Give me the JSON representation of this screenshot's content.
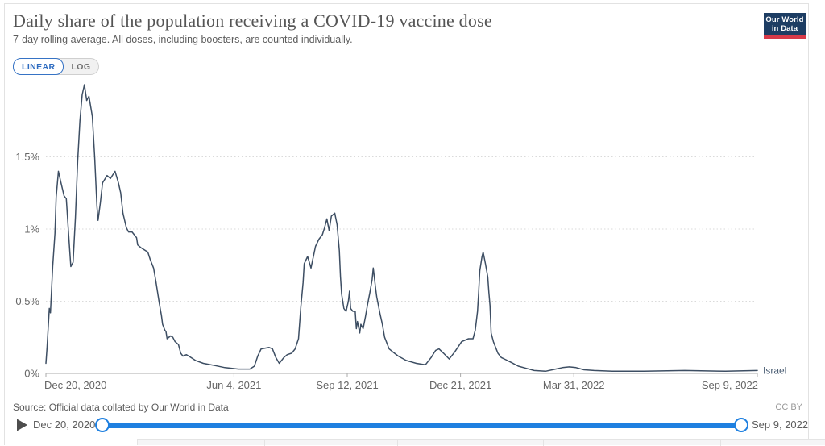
{
  "header": {
    "title": "Daily share of the population receiving a COVID-19 vaccine dose",
    "subtitle": "7-day rolling average. All doses, including boosters, are counted individually.",
    "logo": {
      "line1": "Our World",
      "line2": "in Data"
    }
  },
  "scale_toggle": {
    "linear_label": "LINEAR",
    "log_label": "LOG",
    "selected": "LINEAR"
  },
  "chart_data": {
    "type": "line",
    "title": "Daily share of the population receiving a COVID-19 vaccine dose",
    "x_unit": "days since Dec 20, 2020",
    "xlim": [
      0,
      628
    ],
    "ylim": [
      0,
      2.05
    ],
    "grid": true,
    "y_ticks": [
      {
        "value": 0,
        "label": "0%"
      },
      {
        "value": 0.5,
        "label": "0.5%"
      },
      {
        "value": 1,
        "label": "1%"
      },
      {
        "value": 1.5,
        "label": "1.5%"
      }
    ],
    "x_ticks": [
      {
        "day": 0,
        "label": "Dec 20, 2020"
      },
      {
        "day": 166,
        "label": "Jun 4, 2021"
      },
      {
        "day": 266,
        "label": "Sep 12, 2021"
      },
      {
        "day": 366,
        "label": "Dec 21, 2021"
      },
      {
        "day": 466,
        "label": "Mar 31, 2022"
      },
      {
        "day": 628,
        "label": "Sep 9, 2022"
      }
    ],
    "series": [
      {
        "name": "Israel",
        "color": "#3d4e63",
        "label_color": "#4a5d73",
        "points": [
          [
            0,
            0.07
          ],
          [
            1,
            0.18
          ],
          [
            3,
            0.45
          ],
          [
            4,
            0.42
          ],
          [
            6,
            0.74
          ],
          [
            8,
            0.97
          ],
          [
            9,
            1.22
          ],
          [
            11,
            1.4
          ],
          [
            13,
            1.33
          ],
          [
            16,
            1.23
          ],
          [
            18,
            1.21
          ],
          [
            20,
            0.97
          ],
          [
            22,
            0.74
          ],
          [
            24,
            0.77
          ],
          [
            26,
            1.08
          ],
          [
            28,
            1.47
          ],
          [
            30,
            1.75
          ],
          [
            32,
            1.93
          ],
          [
            34,
            2.0
          ],
          [
            36,
            1.89
          ],
          [
            38,
            1.92
          ],
          [
            41,
            1.78
          ],
          [
            43,
            1.5
          ],
          [
            45,
            1.16
          ],
          [
            46,
            1.06
          ],
          [
            48,
            1.18
          ],
          [
            50,
            1.32
          ],
          [
            54,
            1.37
          ],
          [
            57,
            1.35
          ],
          [
            61,
            1.4
          ],
          [
            64,
            1.32
          ],
          [
            66,
            1.25
          ],
          [
            68,
            1.11
          ],
          [
            71,
            1.01
          ],
          [
            73,
            0.98
          ],
          [
            76,
            0.98
          ],
          [
            78,
            0.96
          ],
          [
            80,
            0.94
          ],
          [
            81,
            0.89
          ],
          [
            84,
            0.87
          ],
          [
            88,
            0.85
          ],
          [
            90,
            0.84
          ],
          [
            92,
            0.79
          ],
          [
            95,
            0.73
          ],
          [
            97,
            0.64
          ],
          [
            98,
            0.59
          ],
          [
            100,
            0.49
          ],
          [
            102,
            0.4
          ],
          [
            103,
            0.34
          ],
          [
            105,
            0.3
          ],
          [
            106,
            0.29
          ],
          [
            107,
            0.24
          ],
          [
            110,
            0.26
          ],
          [
            112,
            0.25
          ],
          [
            114,
            0.22
          ],
          [
            117,
            0.2
          ],
          [
            119,
            0.14
          ],
          [
            121,
            0.12
          ],
          [
            124,
            0.13
          ],
          [
            128,
            0.11
          ],
          [
            132,
            0.09
          ],
          [
            139,
            0.07
          ],
          [
            149,
            0.055
          ],
          [
            158,
            0.04
          ],
          [
            170,
            0.03
          ],
          [
            180,
            0.03
          ],
          [
            184,
            0.05
          ],
          [
            187,
            0.12
          ],
          [
            190,
            0.17
          ],
          [
            197,
            0.18
          ],
          [
            200,
            0.17
          ],
          [
            203,
            0.11
          ],
          [
            206,
            0.07
          ],
          [
            210,
            0.11
          ],
          [
            213,
            0.13
          ],
          [
            217,
            0.14
          ],
          [
            220,
            0.17
          ],
          [
            223,
            0.24
          ],
          [
            225,
            0.46
          ],
          [
            227,
            0.63
          ],
          [
            228,
            0.76
          ],
          [
            231,
            0.81
          ],
          [
            234,
            0.73
          ],
          [
            238,
            0.88
          ],
          [
            241,
            0.93
          ],
          [
            244,
            0.96
          ],
          [
            246,
            1.01
          ],
          [
            248,
            1.07
          ],
          [
            250,
            0.99
          ],
          [
            252,
            1.09
          ],
          [
            255,
            1.11
          ],
          [
            257,
            1.03
          ],
          [
            259,
            0.85
          ],
          [
            260,
            0.67
          ],
          [
            261,
            0.55
          ],
          [
            263,
            0.45
          ],
          [
            265,
            0.43
          ],
          [
            267,
            0.5
          ],
          [
            268,
            0.57
          ],
          [
            269,
            0.45
          ],
          [
            271,
            0.43
          ],
          [
            273,
            0.43
          ],
          [
            274,
            0.31
          ],
          [
            275,
            0.36
          ],
          [
            277,
            0.28
          ],
          [
            278,
            0.34
          ],
          [
            280,
            0.31
          ],
          [
            282,
            0.39
          ],
          [
            284,
            0.48
          ],
          [
            286,
            0.56
          ],
          [
            288,
            0.65
          ],
          [
            289,
            0.73
          ],
          [
            291,
            0.59
          ],
          [
            292,
            0.53
          ],
          [
            295,
            0.41
          ],
          [
            297,
            0.34
          ],
          [
            299,
            0.25
          ],
          [
            303,
            0.17
          ],
          [
            306,
            0.15
          ],
          [
            311,
            0.12
          ],
          [
            318,
            0.09
          ],
          [
            327,
            0.07
          ],
          [
            335,
            0.06
          ],
          [
            340,
            0.11
          ],
          [
            344,
            0.16
          ],
          [
            347,
            0.17
          ],
          [
            351,
            0.14
          ],
          [
            356,
            0.1
          ],
          [
            361,
            0.15
          ],
          [
            367,
            0.22
          ],
          [
            373,
            0.24
          ],
          [
            377,
            0.24
          ],
          [
            379,
            0.3
          ],
          [
            381,
            0.43
          ],
          [
            382,
            0.56
          ],
          [
            383,
            0.71
          ],
          [
            385,
            0.81
          ],
          [
            386,
            0.84
          ],
          [
            388,
            0.76
          ],
          [
            390,
            0.67
          ],
          [
            391,
            0.56
          ],
          [
            392,
            0.47
          ],
          [
            393,
            0.28
          ],
          [
            395,
            0.22
          ],
          [
            397,
            0.18
          ],
          [
            399,
            0.14
          ],
          [
            402,
            0.11
          ],
          [
            406,
            0.095
          ],
          [
            411,
            0.075
          ],
          [
            417,
            0.05
          ],
          [
            424,
            0.035
          ],
          [
            431,
            0.02
          ],
          [
            441,
            0.015
          ],
          [
            450,
            0.03
          ],
          [
            456,
            0.04
          ],
          [
            462,
            0.045
          ],
          [
            468,
            0.04
          ],
          [
            475,
            0.025
          ],
          [
            484,
            0.02
          ],
          [
            500,
            0.015
          ],
          [
            528,
            0.015
          ],
          [
            564,
            0.02
          ],
          [
            600,
            0.015
          ],
          [
            628,
            0.02
          ]
        ]
      }
    ]
  },
  "footer": {
    "source": "Source: Official data collated by Our World in Data",
    "license": "CC BY"
  },
  "timeline": {
    "start_label": "Dec 20, 2020",
    "end_label": "Sep 9, 2022"
  },
  "colors": {
    "accent_blue": "#2d6bc0",
    "slider_blue": "#1f80e0",
    "line": "#3d4e63",
    "logo_navy": "#1d3d63",
    "logo_red": "#d73a49"
  }
}
